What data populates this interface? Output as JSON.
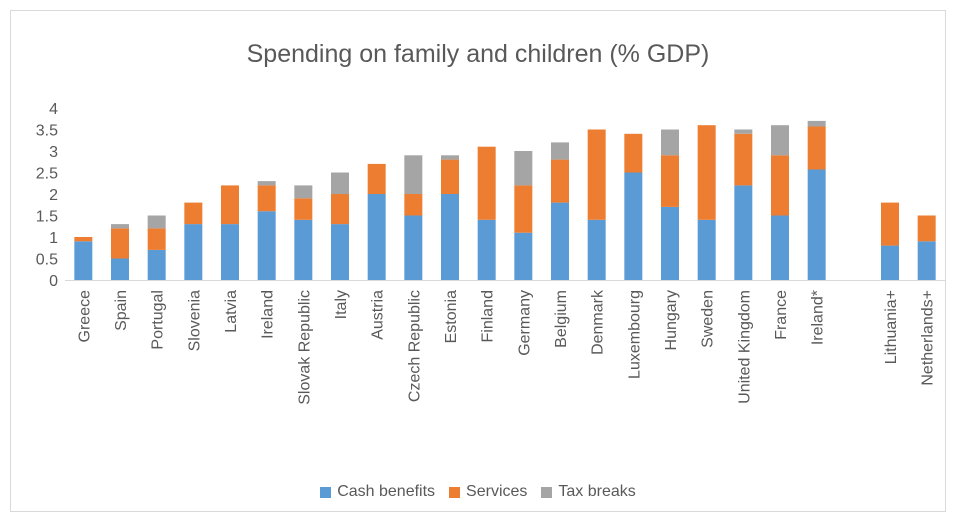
{
  "chart_data": {
    "type": "bar",
    "stacked": true,
    "title": "Spending on family and children (% GDP)",
    "xlabel": "",
    "ylabel": "",
    "ylim": [
      0,
      4
    ],
    "yticks": [
      "0",
      "0.5",
      "1",
      "1.5",
      "2",
      "2.5",
      "3",
      "3.5",
      "4"
    ],
    "grid": false,
    "legend_position": "bottom",
    "categories": [
      "Greece",
      "Spain",
      "Portugal",
      "Slovenia",
      "Latvia",
      "Ireland",
      "Slovak Republic",
      "Italy",
      "Austria",
      "Czech Republic",
      "Estonia",
      "Finland",
      "Germany",
      "Belgium",
      "Denmark",
      "Luxembourg",
      "Hungary",
      "Sweden",
      "United Kingdom",
      "France",
      "Ireland*",
      "Lithuania+",
      "Netherlands+"
    ],
    "gap_before_category": "Lithuania+",
    "series": [
      {
        "name": "Cash benefits",
        "color": "#5b9bd5",
        "values": [
          0.9,
          0.5,
          0.7,
          1.3,
          1.3,
          1.6,
          1.4,
          1.3,
          2.0,
          1.5,
          2.0,
          1.4,
          1.1,
          1.8,
          1.4,
          2.5,
          1.7,
          1.4,
          2.2,
          1.5,
          2.57,
          0.8,
          0.9
        ]
      },
      {
        "name": "Services",
        "color": "#ed7d31",
        "values": [
          0.1,
          0.7,
          0.5,
          0.5,
          0.9,
          0.6,
          0.5,
          0.7,
          0.7,
          0.5,
          0.8,
          1.7,
          1.1,
          1.0,
          2.1,
          0.9,
          1.2,
          2.2,
          1.2,
          1.4,
          1.0,
          1.0,
          0.6
        ]
      },
      {
        "name": "Tax breaks",
        "color": "#a5a5a5",
        "values": [
          0.0,
          0.1,
          0.3,
          0.0,
          0.0,
          0.1,
          0.3,
          0.5,
          0.0,
          0.9,
          0.1,
          0.0,
          0.8,
          0.4,
          0.0,
          0.0,
          0.6,
          0.0,
          0.1,
          0.7,
          0.13,
          0.0,
          0.0
        ]
      }
    ]
  }
}
